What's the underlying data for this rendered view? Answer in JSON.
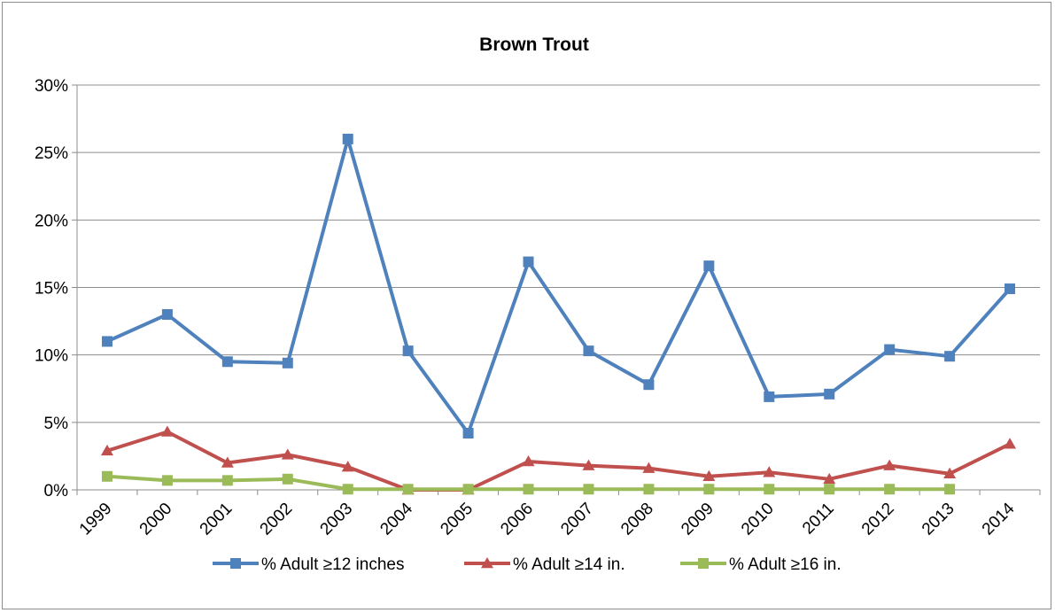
{
  "chart_data": {
    "type": "line",
    "title": "Brown Trout",
    "xlabel": "",
    "ylabel": "",
    "categories": [
      "1999",
      "2000",
      "2001",
      "2002",
      "2003",
      "2004",
      "2005",
      "2006",
      "2007",
      "2008",
      "2009",
      "2010",
      "2011",
      "2012",
      "2013",
      "2014"
    ],
    "ylim": [
      0,
      30
    ],
    "yticks": [
      0,
      5,
      10,
      15,
      20,
      25,
      30
    ],
    "ytick_labels": [
      "0%",
      "5%",
      "10%",
      "15%",
      "20%",
      "25%",
      "30%"
    ],
    "grid": true,
    "legend_position": "bottom",
    "series": [
      {
        "name": "% Adult ≥12 inches",
        "color": "#4f81bd",
        "marker": "square",
        "values": [
          11.0,
          13.0,
          9.5,
          9.4,
          26.0,
          10.3,
          4.2,
          16.9,
          10.3,
          7.8,
          16.6,
          6.9,
          7.1,
          10.4,
          9.9,
          14.9
        ]
      },
      {
        "name": "% Adult ≥14 in.",
        "color": "#c0504d",
        "marker": "triangle",
        "values": [
          2.9,
          4.3,
          2.0,
          2.6,
          1.7,
          0.0,
          0.0,
          2.1,
          1.8,
          1.6,
          1.0,
          1.3,
          0.8,
          1.8,
          1.2,
          3.4
        ]
      },
      {
        "name": "% Adult ≥16 in.",
        "color": "#9bbb59",
        "marker": "square",
        "values": [
          1.0,
          0.7,
          0.7,
          0.8,
          0.05,
          0.05,
          0.05,
          0.05,
          0.05,
          0.05,
          0.05,
          0.05,
          0.05,
          0.05,
          0.05,
          null
        ]
      }
    ]
  }
}
